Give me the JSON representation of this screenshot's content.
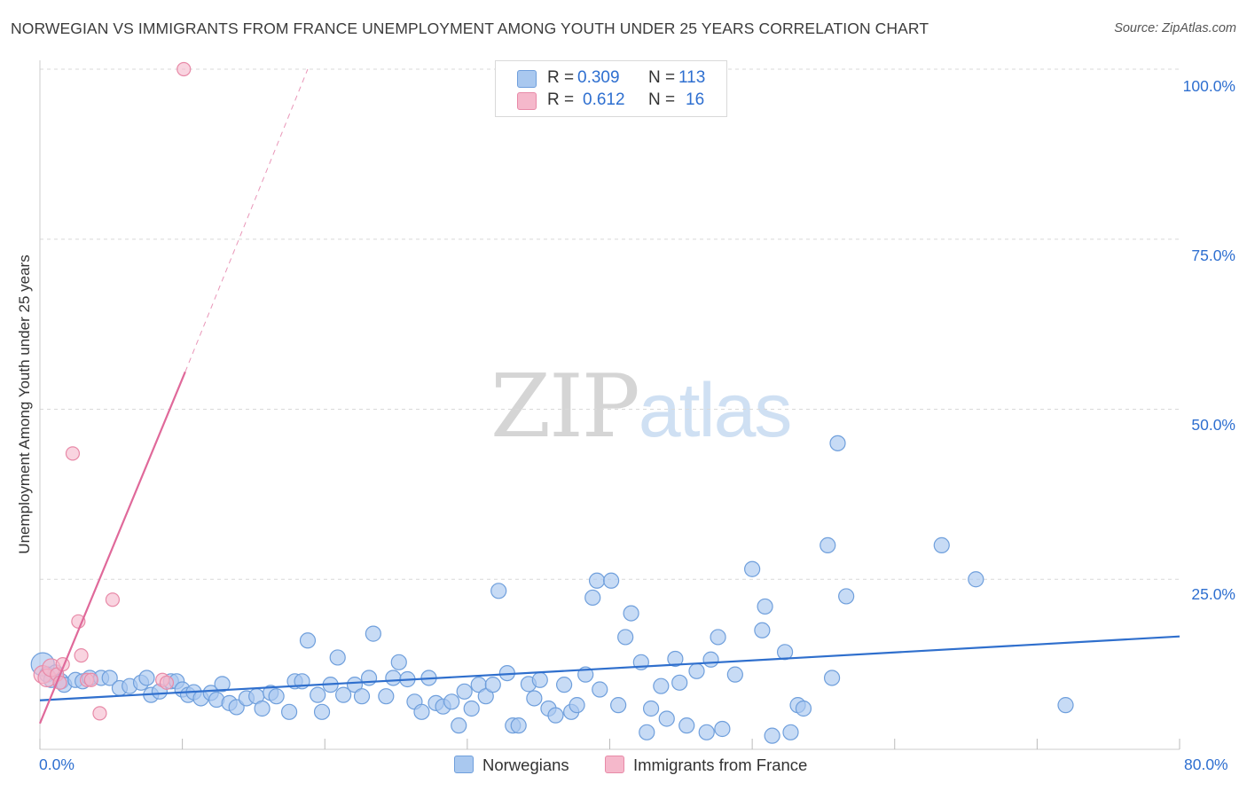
{
  "header": {
    "title": "NORWEGIAN VS IMMIGRANTS FROM FRANCE UNEMPLOYMENT AMONG YOUTH UNDER 25 YEARS CORRELATION CHART",
    "source": "Source: ZipAtlas.com"
  },
  "watermark": {
    "zip": "ZIP",
    "atlas": "atlas"
  },
  "legend_top": {
    "rows": [
      {
        "r_label": "R =",
        "r_value": "0.309",
        "n_label": "N =",
        "n_value": "113"
      },
      {
        "r_label": "R =",
        "r_value": "0.612",
        "n_label": "N =",
        "n_value": "16"
      }
    ]
  },
  "legend_bottom": {
    "series0": "Norwegians",
    "series1": "Immigrants from France"
  },
  "colors": {
    "blue_fill": "#a9c8ef",
    "blue_stroke": "#6f9fdc",
    "blue_line": "#2f6fcd",
    "pink_fill": "#f5b8cb",
    "pink_stroke": "#e88aa8",
    "pink_line": "#e0699a",
    "axis_label": "#2e6fd0",
    "grid": "#d9d9d9"
  },
  "chart_data": {
    "type": "scatter",
    "title": "NORWEGIAN VS IMMIGRANTS FROM FRANCE UNEMPLOYMENT AMONG YOUTH UNDER 25 YEARS CORRELATION CHART",
    "xlabel": "",
    "ylabel": "Unemployment Among Youth under 25 years",
    "xlim": [
      0,
      80
    ],
    "ylim": [
      0,
      100
    ],
    "x_tick_labels": [
      "0.0%",
      "80.0%"
    ],
    "y_tick_labels": [
      "25.0%",
      "50.0%",
      "75.0%",
      "100.0%"
    ],
    "y_ticks": [
      25,
      50,
      75,
      100
    ],
    "grid": true,
    "legend_position": "top-center",
    "series": [
      {
        "name": "Norwegians",
        "R": 0.309,
        "N": 113,
        "trend": {
          "x0": 0,
          "y0": 7.2,
          "x1": 80,
          "y1": 16.6
        },
        "points": [
          [
            0.2,
            12.5
          ],
          [
            0.5,
            11.0
          ],
          [
            0.8,
            10.2
          ],
          [
            1.1,
            11.3
          ],
          [
            1.5,
            10.0
          ],
          [
            1.7,
            9.5
          ],
          [
            2.5,
            10.2
          ],
          [
            3.0,
            10.0
          ],
          [
            3.5,
            10.5
          ],
          [
            4.3,
            10.5
          ],
          [
            4.9,
            10.5
          ],
          [
            5.6,
            9.0
          ],
          [
            6.3,
            9.3
          ],
          [
            7.1,
            9.8
          ],
          [
            7.5,
            10.5
          ],
          [
            7.8,
            8.0
          ],
          [
            8.4,
            8.5
          ],
          [
            9.2,
            10.0
          ],
          [
            9.6,
            10.0
          ],
          [
            10.0,
            8.8
          ],
          [
            10.4,
            8.0
          ],
          [
            10.8,
            8.4
          ],
          [
            11.3,
            7.5
          ],
          [
            12.0,
            8.3
          ],
          [
            12.4,
            7.3
          ],
          [
            12.8,
            9.6
          ],
          [
            13.3,
            6.8
          ],
          [
            13.8,
            6.2
          ],
          [
            14.5,
            7.5
          ],
          [
            15.2,
            7.8
          ],
          [
            15.6,
            6.0
          ],
          [
            16.2,
            8.3
          ],
          [
            16.6,
            7.8
          ],
          [
            17.5,
            5.5
          ],
          [
            17.9,
            10.0
          ],
          [
            18.4,
            10.0
          ],
          [
            18.8,
            16.0
          ],
          [
            19.5,
            8.0
          ],
          [
            19.8,
            5.5
          ],
          [
            20.4,
            9.5
          ],
          [
            20.9,
            13.5
          ],
          [
            21.3,
            8.0
          ],
          [
            22.1,
            9.5
          ],
          [
            22.6,
            7.8
          ],
          [
            23.1,
            10.5
          ],
          [
            23.4,
            17.0
          ],
          [
            24.3,
            7.8
          ],
          [
            24.8,
            10.5
          ],
          [
            25.2,
            12.8
          ],
          [
            25.8,
            10.3
          ],
          [
            26.3,
            7.0
          ],
          [
            26.8,
            5.5
          ],
          [
            27.3,
            10.5
          ],
          [
            27.8,
            6.8
          ],
          [
            28.3,
            6.3
          ],
          [
            28.9,
            7.0
          ],
          [
            29.4,
            3.5
          ],
          [
            29.8,
            8.5
          ],
          [
            30.3,
            6.0
          ],
          [
            30.8,
            9.5
          ],
          [
            31.3,
            7.8
          ],
          [
            31.8,
            9.5
          ],
          [
            32.2,
            23.3
          ],
          [
            32.8,
            11.2
          ],
          [
            33.2,
            3.5
          ],
          [
            33.6,
            3.5
          ],
          [
            34.3,
            9.6
          ],
          [
            34.7,
            7.5
          ],
          [
            35.1,
            10.2
          ],
          [
            35.7,
            6.0
          ],
          [
            36.2,
            5.0
          ],
          [
            36.8,
            9.5
          ],
          [
            37.3,
            5.5
          ],
          [
            37.7,
            6.5
          ],
          [
            38.3,
            11.0
          ],
          [
            38.8,
            22.3
          ],
          [
            39.3,
            8.8
          ],
          [
            39.1,
            24.8
          ],
          [
            40.1,
            24.8
          ],
          [
            40.6,
            6.5
          ],
          [
            41.1,
            16.5
          ],
          [
            41.5,
            20.0
          ],
          [
            42.2,
            12.8
          ],
          [
            42.6,
            2.5
          ],
          [
            42.9,
            6.0
          ],
          [
            43.6,
            9.3
          ],
          [
            44.0,
            4.5
          ],
          [
            44.6,
            13.3
          ],
          [
            44.9,
            9.8
          ],
          [
            45.4,
            3.5
          ],
          [
            46.1,
            11.5
          ],
          [
            46.8,
            2.5
          ],
          [
            47.1,
            13.2
          ],
          [
            47.6,
            16.5
          ],
          [
            47.9,
            3.0
          ],
          [
            48.8,
            11.0
          ],
          [
            50.0,
            26.5
          ],
          [
            50.7,
            17.5
          ],
          [
            50.9,
            21.0
          ],
          [
            51.4,
            2.0
          ],
          [
            52.3,
            14.3
          ],
          [
            52.7,
            2.5
          ],
          [
            53.2,
            6.5
          ],
          [
            53.6,
            6.0
          ],
          [
            55.6,
            10.5
          ],
          [
            56.0,
            45.0
          ],
          [
            56.6,
            22.5
          ],
          [
            55.3,
            30.0
          ],
          [
            63.3,
            30.0
          ],
          [
            65.7,
            25.0
          ],
          [
            72.0,
            6.5
          ]
        ]
      },
      {
        "name": "Immigrants from France",
        "R": 0.612,
        "N": 16,
        "trend": {
          "x0": 0,
          "y0": 3.8,
          "x1": 10.2,
          "y1": 55.5,
          "dashed_to": {
            "x": 18.8,
            "y": 100
          }
        },
        "points": [
          [
            0.2,
            11.0
          ],
          [
            0.5,
            10.5
          ],
          [
            0.8,
            12.0
          ],
          [
            1.2,
            11.0
          ],
          [
            1.4,
            9.8
          ],
          [
            1.6,
            12.5
          ],
          [
            2.3,
            43.5
          ],
          [
            2.7,
            18.8
          ],
          [
            2.9,
            13.8
          ],
          [
            3.3,
            10.2
          ],
          [
            3.6,
            10.2
          ],
          [
            4.2,
            5.3
          ],
          [
            5.1,
            22.0
          ],
          [
            8.6,
            10.2
          ],
          [
            8.9,
            9.8
          ],
          [
            10.1,
            100.0
          ]
        ]
      }
    ]
  }
}
